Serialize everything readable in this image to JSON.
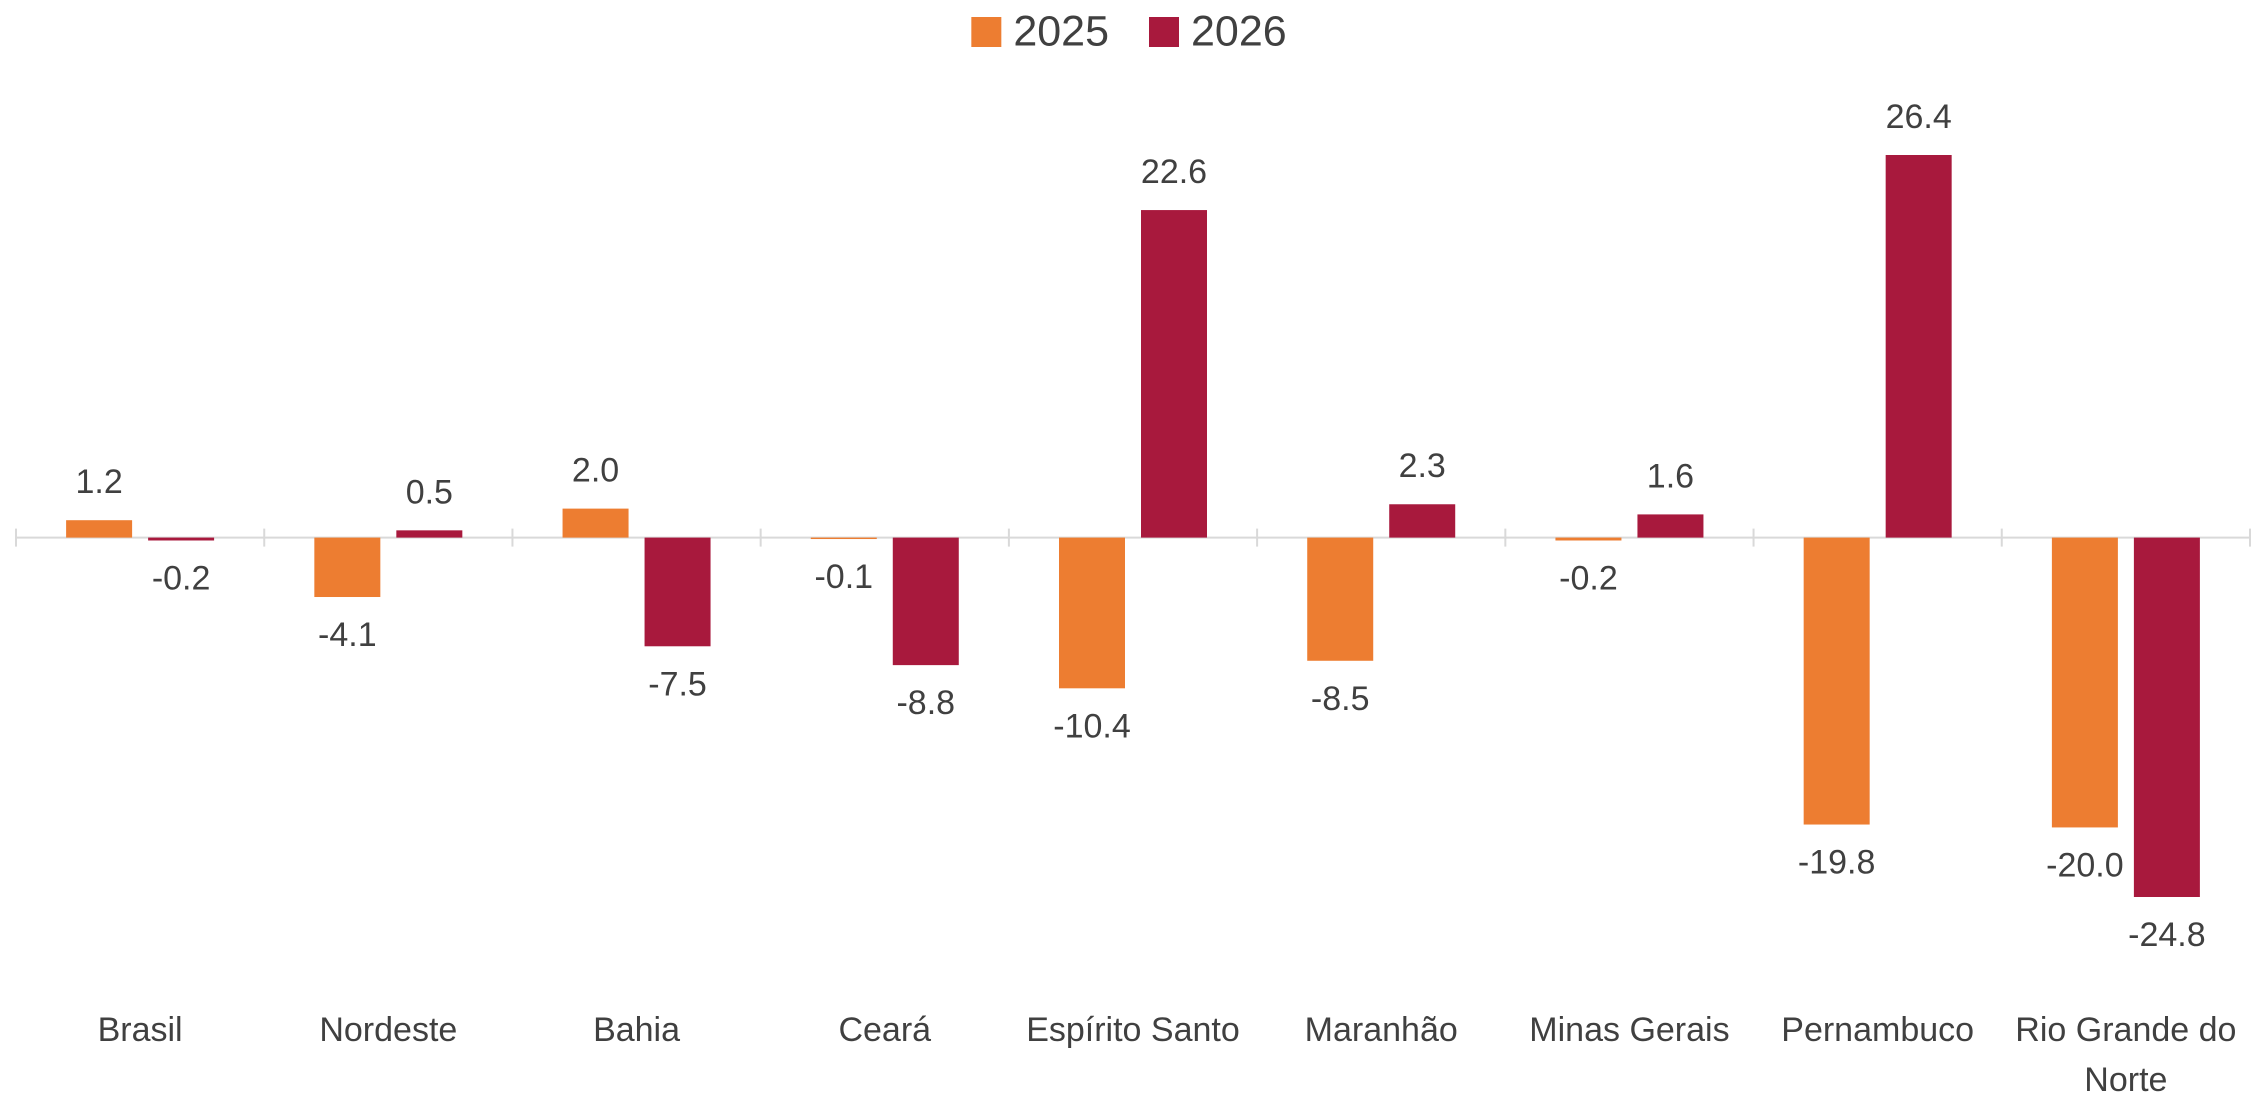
{
  "chart_data": {
    "type": "bar",
    "categories": [
      "Brasil",
      "Nordeste",
      "Bahia",
      "Ceará",
      "Espírito Santo",
      "Maranhão",
      "Minas Gerais",
      "Pernambuco",
      "Rio Grande do Norte"
    ],
    "series": [
      {
        "name": "2025",
        "color": "#ED7D31",
        "values": [
          1.2,
          -4.1,
          2.0,
          -0.1,
          -10.4,
          -8.5,
          -0.2,
          -19.8,
          -20.0
        ],
        "value_labels": [
          "1.2",
          "-4.1",
          "2.0",
          "-0.1",
          "-10.4",
          "-8.5",
          "-0.2",
          "-19.8",
          "-20.0"
        ]
      },
      {
        "name": "2026",
        "color": "#A8193D",
        "values": [
          -0.2,
          0.5,
          -7.5,
          -8.8,
          22.6,
          2.3,
          1.6,
          26.4,
          -24.8
        ],
        "value_labels": [
          "-0.2",
          "0.5",
          "-7.5",
          "-8.8",
          "22.6",
          "2.3",
          "1.6",
          "26.4",
          "-24.8"
        ]
      }
    ],
    "legend": "top"
  }
}
